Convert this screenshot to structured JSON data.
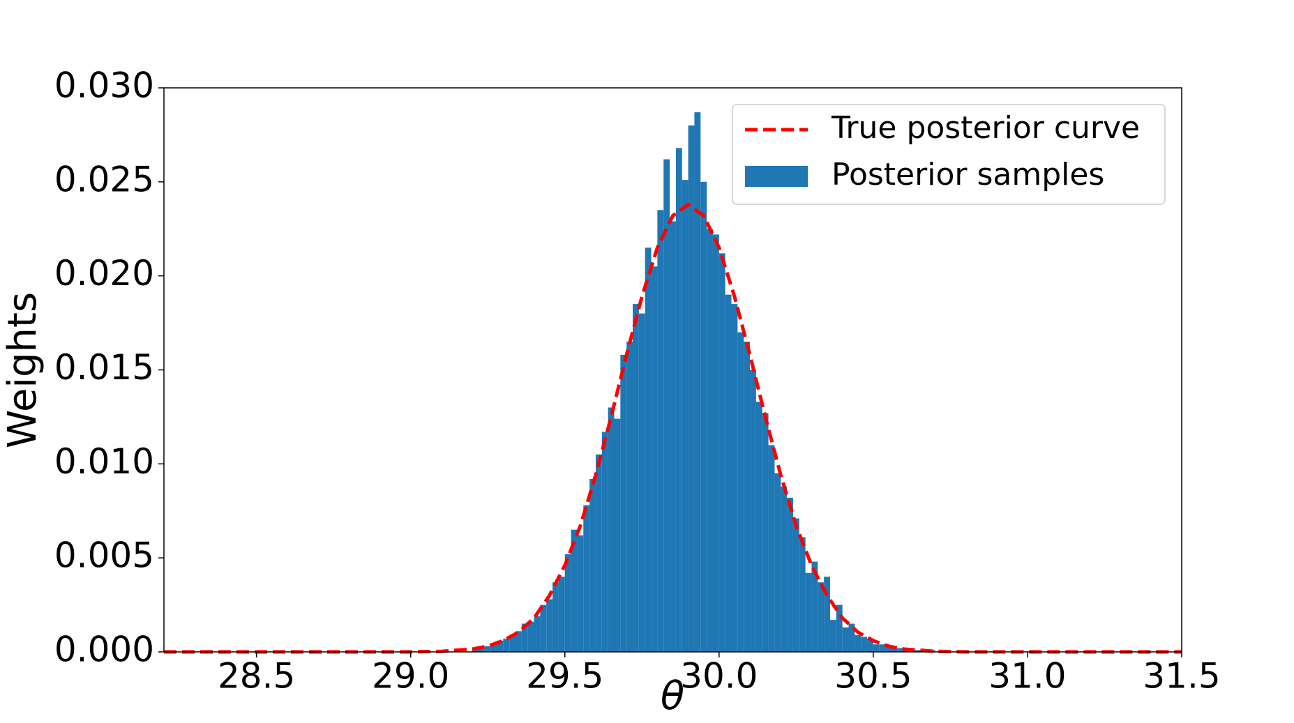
{
  "chart_data": {
    "type": "histogram",
    "xlabel": "θ",
    "ylabel": "Weights",
    "xlim": [
      28.2,
      31.5
    ],
    "ylim": [
      0,
      0.03
    ],
    "xticks": [
      28.5,
      {
        "value": 29,
        "label": "29.0"
      },
      29.5,
      {
        "value": 30,
        "label": "30.0"
      },
      30.5,
      {
        "value": 31,
        "label": "31.0"
      },
      31.5
    ],
    "yticks": [
      {
        "value": 0,
        "label": "0.000"
      },
      {
        "value": 0.005,
        "label": "0.005"
      },
      {
        "value": 0.01,
        "label": "0.010"
      },
      {
        "value": 0.015,
        "label": "0.015"
      },
      {
        "value": 0.02,
        "label": "0.020"
      },
      {
        "value": 0.025,
        "label": "0.025"
      },
      {
        "value": 0.03,
        "label": "0.030"
      }
    ],
    "grid": false,
    "legend": "upper right",
    "bins": [
      29.2,
      29.22,
      29.24,
      29.26,
      29.28,
      29.3,
      29.32,
      29.34,
      29.36,
      29.38,
      29.4,
      29.42,
      29.44,
      29.46,
      29.48,
      29.5,
      29.52,
      29.54,
      29.56,
      29.58,
      29.6,
      29.62,
      29.64,
      29.66,
      29.68,
      29.7,
      29.72,
      29.74,
      29.76,
      29.78,
      29.8,
      29.82,
      29.84,
      29.86,
      29.88,
      29.9,
      29.92,
      29.94,
      29.96,
      29.98,
      30.0,
      30.02,
      30.04,
      30.06,
      30.08,
      30.1,
      30.12,
      30.14,
      30.16,
      30.18,
      30.2,
      30.22,
      30.24,
      30.26,
      30.28,
      30.3,
      30.32,
      30.34,
      30.36,
      30.38,
      30.4,
      30.42,
      30.44,
      30.46,
      30.48,
      30.5,
      30.52,
      30.54,
      30.56,
      30.58,
      30.6,
      30.62,
      30.64,
      30.66,
      30.68,
      30.7
    ],
    "series": [
      {
        "name": "True posterior curve",
        "type": "line",
        "color": "#ff0000",
        "dashed": true,
        "x": [
          28.2,
          28.6,
          29.0,
          29.1,
          29.2,
          29.25,
          29.3,
          29.35,
          29.4,
          29.45,
          29.5,
          29.55,
          29.6,
          29.65,
          29.7,
          29.75,
          29.8,
          29.85,
          29.9,
          29.95,
          30.0,
          30.05,
          30.1,
          30.15,
          30.2,
          30.25,
          30.3,
          30.35,
          30.4,
          30.45,
          30.5,
          30.55,
          30.6,
          30.7,
          30.8,
          31.2,
          31.5
        ],
        "values": [
          0,
          0,
          0,
          3e-05,
          0.00015,
          0.0003,
          0.0006,
          0.00105,
          0.0018,
          0.003,
          0.0046,
          0.0067,
          0.0094,
          0.0125,
          0.0158,
          0.0189,
          0.0215,
          0.0232,
          0.0238,
          0.0232,
          0.0215,
          0.0189,
          0.0158,
          0.0125,
          0.0094,
          0.0067,
          0.0046,
          0.003,
          0.0018,
          0.00105,
          0.0006,
          0.0003,
          0.00015,
          3e-05,
          0,
          0,
          0
        ]
      },
      {
        "name": "Posterior samples",
        "type": "histogram",
        "color": "#1f77b4",
        "values": [
          0.0002,
          0.0002,
          0.0003,
          0.0004,
          0.0006,
          0.0007,
          0.0009,
          0.0011,
          0.0015,
          0.0016,
          0.0019,
          0.0025,
          0.0028,
          0.0037,
          0.004,
          0.0052,
          0.0065,
          0.0062,
          0.0078,
          0.0092,
          0.0105,
          0.0117,
          0.013,
          0.0124,
          0.0158,
          0.0165,
          0.0185,
          0.018,
          0.0215,
          0.0205,
          0.0235,
          0.0262,
          0.0229,
          0.0268,
          0.0251,
          0.028,
          0.0287,
          0.025,
          0.0225,
          0.0222,
          0.0212,
          0.019,
          0.0185,
          0.017,
          0.0165,
          0.015,
          0.0133,
          0.0127,
          0.011,
          0.0095,
          0.0088,
          0.0082,
          0.0071,
          0.0061,
          0.0042,
          0.0048,
          0.0037,
          0.004,
          0.0017,
          0.0025,
          0.0013,
          0.0015,
          0.0009,
          0.0008,
          0.0007,
          0.0004,
          0.0004,
          0.0003,
          0.0002,
          0.0002,
          0.0001,
          0.0001,
          0.0001,
          0.0001,
          0.0001
        ]
      }
    ]
  }
}
